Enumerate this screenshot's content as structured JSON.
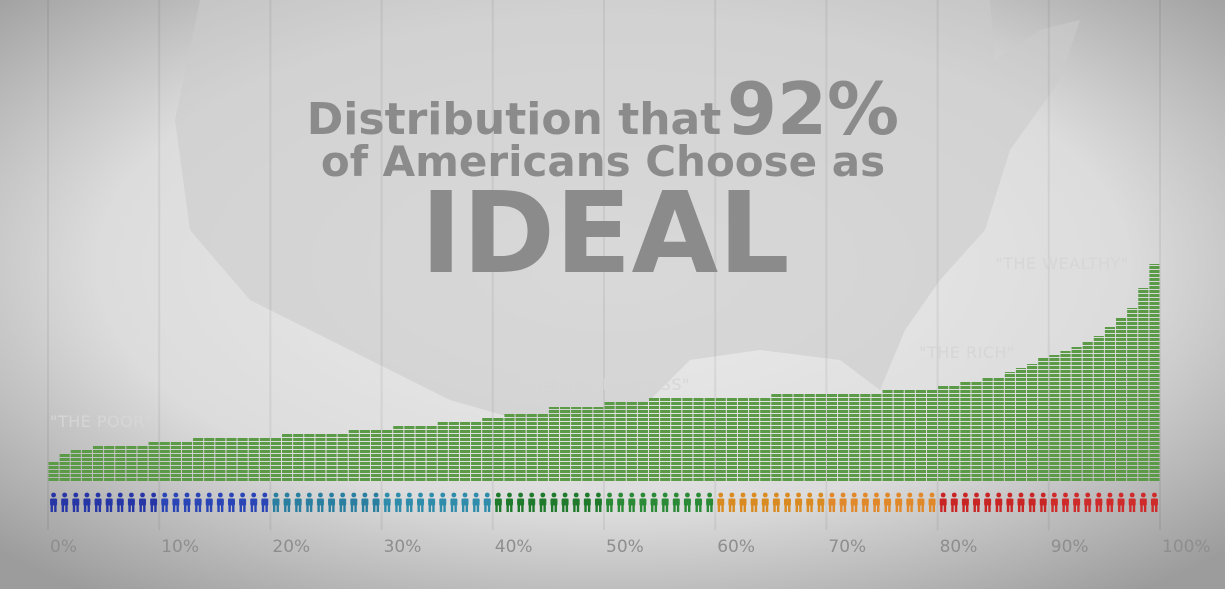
{
  "chart_data": {
    "type": "histogram",
    "title": {
      "line1": "Distribution that",
      "highlight": "92%",
      "line2": "of Americans Choose as",
      "emphasis": "IDEAL"
    },
    "annotations": [
      "\"THE POOR\"",
      "\"THE MIDDLE CLASS\"",
      "\"THE RICH\"",
      "\"THE WEALTHY\""
    ],
    "bins": [
      0,
      1,
      2,
      3,
      4,
      5,
      6,
      7,
      8,
      9,
      10,
      11,
      12,
      13,
      14,
      15,
      16,
      17,
      18,
      19,
      20,
      21,
      22,
      23,
      24,
      25,
      26,
      27,
      28,
      29,
      30,
      31,
      32,
      33,
      34,
      35,
      36,
      37,
      38,
      39,
      40,
      41,
      42,
      43,
      44,
      45,
      46,
      47,
      48,
      49,
      50,
      51,
      52,
      53,
      54,
      55,
      56,
      57,
      58,
      59,
      60,
      61,
      62,
      63,
      64,
      65,
      66,
      67,
      68,
      69,
      70,
      71,
      72,
      73,
      74,
      75,
      76,
      77,
      78,
      79,
      80,
      81,
      82,
      83,
      84,
      85,
      86,
      87,
      88,
      89,
      90,
      91,
      92,
      93,
      94,
      95,
      96,
      97,
      98,
      99,
      100
    ],
    "values": [
      20,
      29,
      33,
      33,
      36,
      36,
      36,
      36,
      36,
      41,
      41,
      41,
      41,
      45,
      45,
      45,
      45,
      45,
      45,
      45,
      45,
      49,
      49,
      49,
      49,
      49,
      49,
      53,
      53,
      53,
      53,
      57,
      57,
      57,
      57,
      61,
      61,
      61,
      61,
      65,
      65,
      69,
      69,
      69,
      69,
      75,
      75,
      75,
      75,
      75,
      80,
      80,
      80,
      80,
      85,
      85,
      85,
      85,
      85,
      85,
      85,
      85,
      85,
      85,
      85,
      89,
      89,
      89,
      89,
      89,
      89,
      89,
      89,
      89,
      89,
      93,
      93,
      93,
      93,
      93,
      97,
      97,
      101,
      101,
      105,
      105,
      110,
      114,
      118,
      124,
      127,
      131,
      135,
      140,
      146,
      155,
      164,
      174,
      194,
      218
    ],
    "color": "#5b9b48",
    "people_colors": [
      "#2636a6",
      "#2a45b5",
      "#2a7fa0",
      "#2f8cab",
      "#1f7a2c",
      "#2b8a36",
      "#d98b22",
      "#e0882a",
      "#c92525",
      "#cf2b2b"
    ],
    "xlim": [
      0,
      100
    ],
    "xticks": [
      {
        "value": 0,
        "label": "0%"
      },
      {
        "value": 10,
        "label": "10%"
      },
      {
        "value": 20,
        "label": "20%"
      },
      {
        "value": 30,
        "label": "30%"
      },
      {
        "value": 40,
        "label": "40%"
      },
      {
        "value": 50,
        "label": "50%"
      },
      {
        "value": 60,
        "label": "60%"
      },
      {
        "value": 70,
        "label": "70%"
      },
      {
        "value": 80,
        "label": "80%"
      },
      {
        "value": 90,
        "label": "90%"
      },
      {
        "value": 100,
        "label": "100%"
      }
    ],
    "ylim": [
      0,
      220
    ],
    "grid": true
  }
}
